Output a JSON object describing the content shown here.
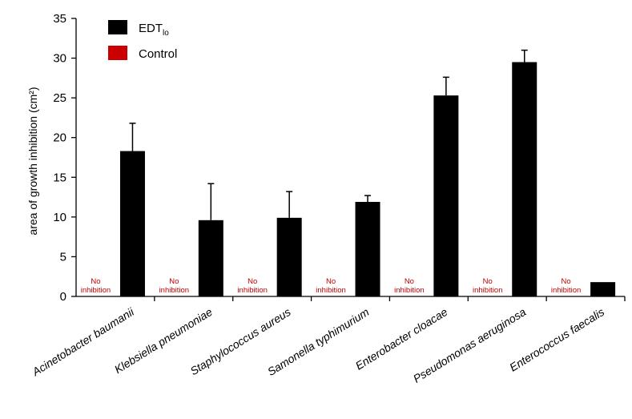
{
  "chart_data": {
    "type": "bar",
    "ylabel": "area of growth inhibition (cm²)",
    "ylim": [
      0,
      35
    ],
    "yticks": [
      0,
      5,
      10,
      15,
      20,
      25,
      30,
      35
    ],
    "grid": false,
    "legend_position": "top-left",
    "categories": [
      "Acinetobacter baumanii",
      "Klebsiella pneumoniae",
      "Staphylococcus aureus",
      "Samonella typhimurium",
      "Enterobacter cloacae",
      "Pseudomonas aeruginosa",
      "Enterococcus faecalis"
    ],
    "series": [
      {
        "name": "EDTlo",
        "name_main": "EDT",
        "name_sub": "lo",
        "color": "#000000",
        "values": [
          18.3,
          9.6,
          9.9,
          11.9,
          25.3,
          29.5,
          1.8
        ],
        "errors": [
          3.5,
          4.6,
          3.3,
          0.8,
          2.3,
          1.5,
          0
        ]
      },
      {
        "name": "Control",
        "color": "#cc0000",
        "values": [
          0,
          0,
          0,
          0,
          0,
          0,
          0
        ],
        "annotation": [
          "No",
          "inhibition"
        ]
      }
    ]
  }
}
